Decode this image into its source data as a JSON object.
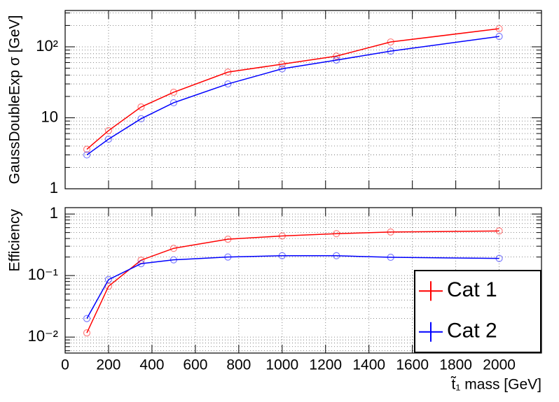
{
  "chart_data": [
    {
      "type": "line",
      "ylabel": "GaussDoubleExp σ [GeV]",
      "x": [
        100,
        200,
        350,
        500,
        750,
        1000,
        1250,
        1500,
        2000
      ],
      "xlim": [
        0,
        2195
      ],
      "xticks": [
        0,
        200,
        400,
        600,
        800,
        1000,
        1200,
        1400,
        1600,
        1800,
        2000
      ],
      "ylim": [
        1,
        325
      ],
      "yticks": [
        1,
        10,
        {
          "value": 100,
          "label": "10²"
        }
      ],
      "ylog": true,
      "grid": true,
      "series": [
        {
          "color": "#ff0000",
          "values": [
            3.6,
            6.6,
            14.2,
            22.9,
            44,
            57,
            74,
            117,
            180
          ]
        },
        {
          "color": "#0000ff",
          "values": [
            3.0,
            5.0,
            9.7,
            16.3,
            30,
            49,
            65,
            87,
            140
          ]
        }
      ]
    },
    {
      "type": "line",
      "ylabel": "Efficiency",
      "xlabel": "t̃₁ mass [GeV]",
      "x": [
        100,
        200,
        350,
        500,
        750,
        1000,
        1250,
        1500,
        2000
      ],
      "xlim": [
        0,
        2195
      ],
      "xticks": [
        0,
        200,
        400,
        600,
        800,
        1000,
        1200,
        1400,
        1600,
        1800,
        2000
      ],
      "ylim": [
        0.0055,
        1.27
      ],
      "yticks": [
        {
          "value": 0.01,
          "label": "10⁻²"
        },
        {
          "value": 0.1,
          "label": "10⁻¹"
        },
        1
      ],
      "ylog": true,
      "grid": true,
      "legend": "lower right",
      "series": [
        {
          "name": "Cat 1",
          "color": "#ff0000",
          "values": [
            0.0117,
            0.067,
            0.178,
            0.277,
            0.39,
            0.44,
            0.48,
            0.51,
            0.53
          ]
        },
        {
          "name": "Cat 2",
          "color": "#0000ff",
          "values": [
            0.02,
            0.086,
            0.156,
            0.18,
            0.2,
            0.21,
            0.21,
            0.198,
            0.19
          ]
        }
      ]
    }
  ]
}
